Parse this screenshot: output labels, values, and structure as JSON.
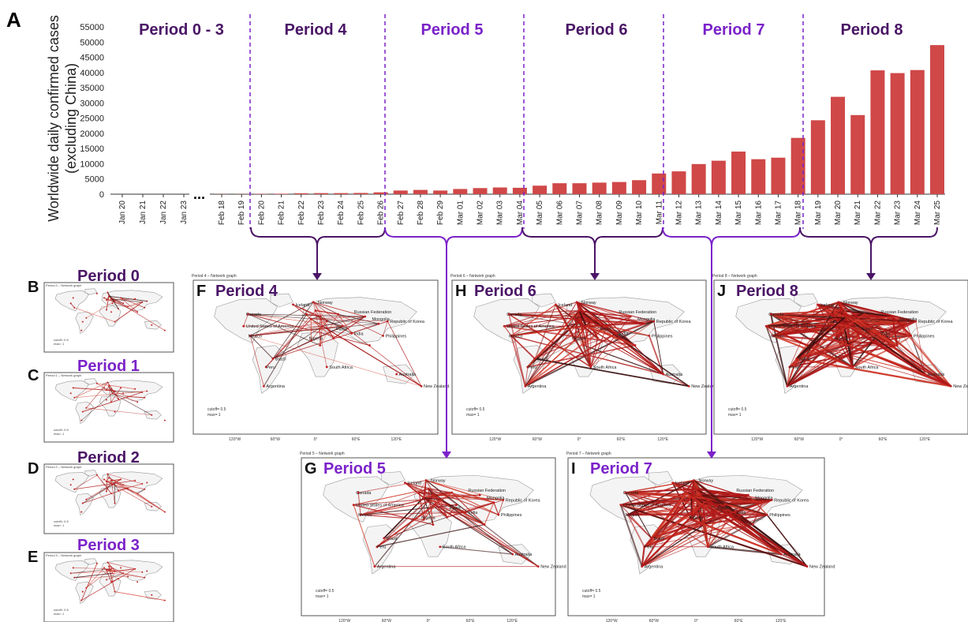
{
  "panel_a": {
    "letter": "A",
    "ylabel_line1": "Worldwide daily confirmed cases",
    "ylabel_line2": "(excluding China)",
    "ellipsis": "...",
    "periods": [
      "Period 0 - 3",
      "Period 4",
      "Period 5",
      "Period 6",
      "Period 7",
      "Period 8"
    ],
    "period_colors": [
      "#4a1566",
      "#4a1566",
      "#7b22c9",
      "#4a1566",
      "#7b22c9",
      "#4a1566"
    ]
  },
  "chart_data": {
    "type": "bar",
    "title": "",
    "xlabel": "",
    "ylabel": "Worldwide daily confirmed cases (excluding China)",
    "ylim": [
      0,
      55000
    ],
    "yticks": [
      0,
      5000,
      10000,
      15000,
      20000,
      25000,
      30000,
      35000,
      40000,
      45000,
      50000,
      55000
    ],
    "bar_color": "#d04848",
    "categories": [
      "Jan 20",
      "Jan 21",
      "Jan 22",
      "Jan 23",
      "Feb 18",
      "Feb 19",
      "Feb 20",
      "Feb 21",
      "Feb 22",
      "Feb 23",
      "Feb 24",
      "Feb 25",
      "Feb 26",
      "Feb 27",
      "Feb 28",
      "Feb 29",
      "Mar 01",
      "Mar 02",
      "Mar 03",
      "Mar 04",
      "Mar 05",
      "Mar 06",
      "Mar 07",
      "Mar 08",
      "Mar 09",
      "Mar 10",
      "Mar 11",
      "Mar 12",
      "Mar 13",
      "Mar 14",
      "Mar 15",
      "Mar 16",
      "Mar 17",
      "Mar 18",
      "Mar 19",
      "Mar 20",
      "Mar 21",
      "Mar 22",
      "Mar 23",
      "Mar 24",
      "Mar 25"
    ],
    "values": [
      0,
      0,
      0,
      0,
      50,
      60,
      100,
      150,
      300,
      350,
      350,
      400,
      600,
      1200,
      1400,
      1200,
      1700,
      2000,
      2200,
      2100,
      2800,
      3600,
      3600,
      3800,
      4000,
      4600,
      6800,
      7500,
      9900,
      11000,
      14000,
      11500,
      12000,
      18500,
      24300,
      32000,
      26000,
      40700,
      39800,
      40800,
      49000
    ]
  },
  "small_panels": [
    {
      "letter": "B",
      "title": "Period 0",
      "color": "#4a1566",
      "caption": "Period 0 – Network graph"
    },
    {
      "letter": "C",
      "title": "Period 1",
      "color": "#7b22c9",
      "caption": "Period 1 – Network graph"
    },
    {
      "letter": "D",
      "title": "Period 2",
      "color": "#4a1566",
      "caption": "Period 2 – Network graph"
    },
    {
      "letter": "E",
      "title": "Period 3",
      "color": "#7b22c9",
      "caption": "Period 3 – Network graph"
    }
  ],
  "maps": {
    "F": {
      "letter": "F",
      "title": "Period 4",
      "caption": "Period 4 – Network graph",
      "color": "#4a1566"
    },
    "G": {
      "letter": "G",
      "title": "Period 5",
      "caption": "Period 5 – Network graph",
      "color": "#7b22c9"
    },
    "H": {
      "letter": "H",
      "title": "Period 6",
      "caption": "Period 6 – Network graph",
      "color": "#4a1566"
    },
    "I": {
      "letter": "I",
      "title": "Period 7",
      "caption": "Period 7 – Network graph",
      "color": "#7b22c9"
    },
    "J": {
      "letter": "J",
      "title": "Period 8",
      "caption": "Period 8 – Network graph",
      "color": "#4a1566"
    }
  },
  "map_text": {
    "cutoff": "cutoff= 0.5",
    "max": "max= 1",
    "lon_ticks": [
      "120°W",
      "60°W",
      "0°",
      "60°E",
      "120°E"
    ],
    "countries": [
      "Canada",
      "United States of America",
      "Mexico",
      "Brazil",
      "Peru",
      "Argentina",
      "Iceland",
      "Norway",
      "Russian Federation",
      "Mongolia",
      "Republic of Korea",
      "Philippines",
      "Australia",
      "South Africa",
      "New Zealand",
      "Nigeria",
      "Egypt",
      "India"
    ]
  }
}
